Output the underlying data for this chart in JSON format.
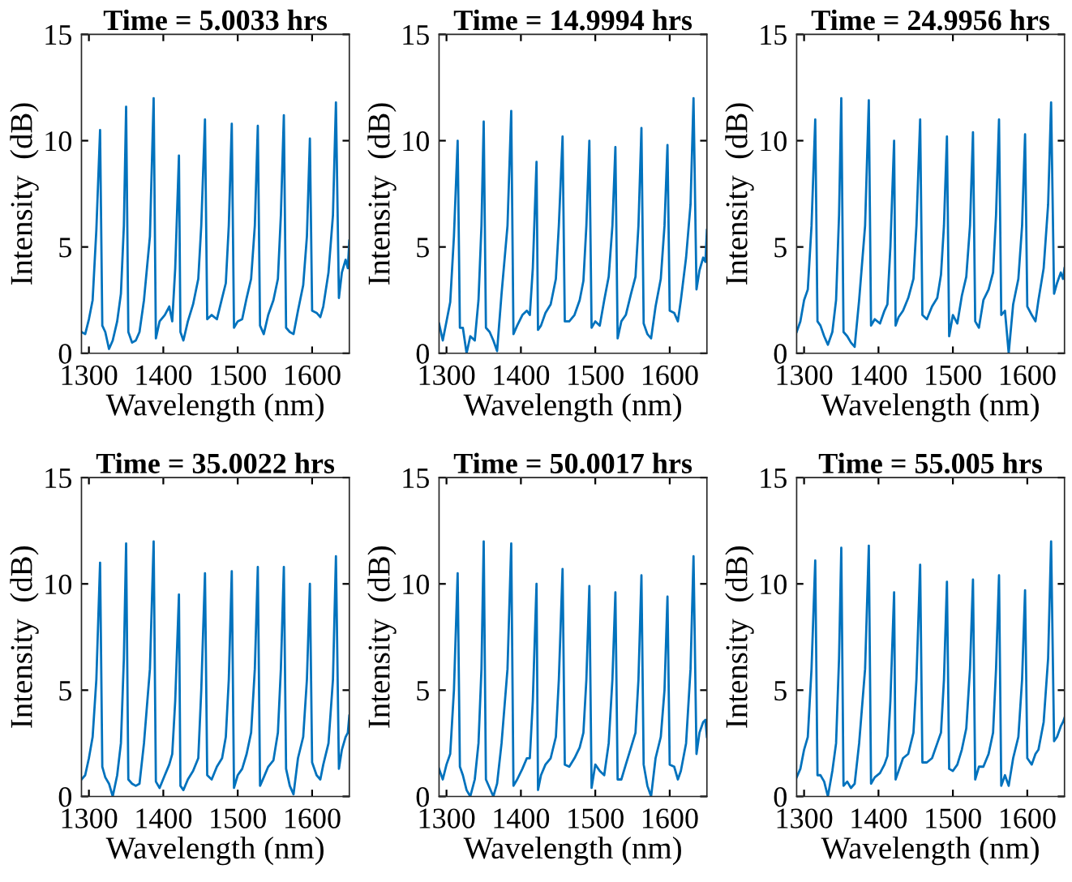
{
  "chart_data": [
    {
      "type": "line",
      "title": "Time = 5.0033 hrs",
      "xlabel": "Wavelength (nm)",
      "ylabel": "Intensity  (dB)",
      "xlim": [
        1290,
        1650
      ],
      "ylim": [
        0,
        15
      ],
      "xticks": [
        1300,
        1400,
        1500,
        1600
      ],
      "yticks": [
        0,
        5,
        10,
        15
      ],
      "grid": false,
      "x": [
        1290,
        1295,
        1300,
        1305,
        1310,
        1315,
        1318,
        1322,
        1327,
        1332,
        1338,
        1343,
        1347,
        1350,
        1353,
        1358,
        1363,
        1368,
        1374,
        1382,
        1387,
        1390,
        1395,
        1402,
        1408,
        1412,
        1416,
        1421,
        1423,
        1427,
        1433,
        1440,
        1447,
        1451,
        1456,
        1459,
        1465,
        1472,
        1479,
        1484,
        1488,
        1492,
        1495,
        1500,
        1506,
        1512,
        1518,
        1523,
        1527,
        1530,
        1535,
        1541,
        1548,
        1554,
        1558,
        1562,
        1565,
        1570,
        1575,
        1581,
        1588,
        1593,
        1597,
        1600,
        1606,
        1611,
        1615,
        1622,
        1628,
        1632,
        1636,
        1640,
        1645,
        1648,
        1650
      ],
      "series": [
        {
          "color": "#0072bd",
          "values": [
            1.0,
            0.9,
            1.6,
            2.5,
            5.8,
            10.5,
            1.3,
            1.0,
            0.2,
            0.6,
            1.5,
            2.8,
            6.0,
            11.6,
            1.0,
            0.5,
            0.6,
            1.0,
            2.5,
            5.5,
            12.0,
            0.7,
            1.5,
            1.8,
            2.2,
            1.5,
            4.0,
            9.3,
            1.0,
            0.6,
            1.5,
            2.3,
            3.5,
            6.0,
            11.0,
            1.6,
            1.8,
            1.6,
            2.6,
            3.3,
            6.0,
            10.8,
            1.2,
            1.5,
            1.6,
            2.6,
            3.5,
            6.0,
            10.7,
            1.3,
            0.9,
            1.8,
            2.5,
            3.5,
            6.5,
            11.2,
            1.2,
            1.0,
            0.9,
            2.0,
            3.2,
            5.5,
            10.1,
            2.0,
            1.9,
            1.7,
            2.2,
            3.8,
            6.5,
            11.8,
            2.6,
            3.8,
            4.4,
            4.0,
            5.3
          ]
        }
      ]
    },
    {
      "type": "line",
      "title": "Time = 14.9994 hrs",
      "xlabel": "Wavelength (nm)",
      "ylabel": "Intensity  (dB)",
      "xlim": [
        1290,
        1650
      ],
      "ylim": [
        0,
        15
      ],
      "xticks": [
        1300,
        1400,
        1500,
        1600
      ],
      "yticks": [
        0,
        5,
        10,
        15
      ],
      "grid": false,
      "x": [
        1290,
        1295,
        1300,
        1305,
        1310,
        1315,
        1318,
        1322,
        1327,
        1332,
        1338,
        1343,
        1347,
        1350,
        1353,
        1358,
        1363,
        1368,
        1374,
        1382,
        1387,
        1390,
        1395,
        1402,
        1408,
        1412,
        1416,
        1421,
        1423,
        1427,
        1433,
        1440,
        1447,
        1451,
        1456,
        1459,
        1465,
        1472,
        1479,
        1484,
        1488,
        1492,
        1495,
        1500,
        1506,
        1512,
        1518,
        1523,
        1527,
        1530,
        1535,
        1541,
        1548,
        1554,
        1558,
        1562,
        1565,
        1570,
        1575,
        1581,
        1588,
        1593,
        1597,
        1600,
        1606,
        1611,
        1615,
        1622,
        1628,
        1632,
        1636,
        1640,
        1645,
        1648,
        1650
      ],
      "series": [
        {
          "color": "#0072bd",
          "values": [
            1.4,
            0.6,
            1.5,
            2.4,
            5.5,
            10.0,
            1.2,
            1.2,
            0.0,
            0.8,
            0.6,
            2.5,
            6.0,
            10.9,
            1.2,
            1.0,
            0.6,
            0.1,
            2.8,
            6.0,
            11.4,
            0.9,
            1.3,
            1.8,
            2.0,
            1.8,
            4.0,
            9.0,
            1.1,
            1.3,
            1.9,
            2.3,
            3.5,
            6.0,
            10.2,
            1.5,
            1.5,
            1.8,
            2.5,
            3.4,
            6.0,
            10.0,
            1.2,
            1.5,
            1.3,
            2.5,
            3.6,
            6.0,
            9.7,
            0.7,
            1.5,
            1.8,
            2.8,
            3.6,
            6.0,
            10.6,
            1.4,
            0.9,
            0.7,
            2.2,
            3.5,
            6.0,
            9.8,
            2.0,
            1.9,
            1.5,
            2.5,
            4.5,
            7.0,
            12.0,
            3.0,
            3.9,
            4.5,
            4.3,
            5.8
          ]
        }
      ]
    },
    {
      "type": "line",
      "title": "Time = 24.9956 hrs",
      "xlabel": "Wavelength (nm)",
      "ylabel": "Intensity  (dB)",
      "xlim": [
        1290,
        1650
      ],
      "ylim": [
        0,
        15
      ],
      "xticks": [
        1300,
        1400,
        1500,
        1600
      ],
      "yticks": [
        0,
        5,
        10,
        15
      ],
      "grid": false,
      "x": [
        1290,
        1295,
        1300,
        1305,
        1310,
        1315,
        1318,
        1322,
        1327,
        1332,
        1338,
        1343,
        1347,
        1350,
        1353,
        1358,
        1363,
        1368,
        1374,
        1382,
        1387,
        1390,
        1395,
        1402,
        1408,
        1412,
        1416,
        1421,
        1423,
        1427,
        1433,
        1440,
        1447,
        1451,
        1456,
        1459,
        1465,
        1472,
        1479,
        1484,
        1488,
        1492,
        1495,
        1500,
        1506,
        1512,
        1518,
        1523,
        1527,
        1530,
        1535,
        1541,
        1548,
        1554,
        1558,
        1562,
        1565,
        1570,
        1575,
        1581,
        1588,
        1593,
        1597,
        1600,
        1606,
        1611,
        1615,
        1622,
        1628,
        1632,
        1636,
        1640,
        1645,
        1648,
        1650
      ],
      "series": [
        {
          "color": "#0072bd",
          "values": [
            1.0,
            1.5,
            2.5,
            3.0,
            6.0,
            11.0,
            1.5,
            1.3,
            0.8,
            0.4,
            1.0,
            2.5,
            6.5,
            12.0,
            1.0,
            0.8,
            0.5,
            0.3,
            2.5,
            6.0,
            11.9,
            1.3,
            1.6,
            1.4,
            2.0,
            2.3,
            5.0,
            10.0,
            1.3,
            1.7,
            2.0,
            2.6,
            3.5,
            6.0,
            11.0,
            1.8,
            1.6,
            2.2,
            2.6,
            3.7,
            6.0,
            10.2,
            0.8,
            1.8,
            1.4,
            2.7,
            3.6,
            6.0,
            10.4,
            1.5,
            1.2,
            2.5,
            3.0,
            3.8,
            6.5,
            11.0,
            1.8,
            2.0,
            0.0,
            2.3,
            3.5,
            6.0,
            10.3,
            2.2,
            1.8,
            1.5,
            2.5,
            4.0,
            7.0,
            11.8,
            2.8,
            3.3,
            3.8,
            3.5,
            4.0
          ]
        }
      ]
    },
    {
      "type": "line",
      "title": "Time = 35.0022 hrs",
      "xlabel": "Wavelength (nm)",
      "ylabel": "Intensity  (dB)",
      "xlim": [
        1290,
        1650
      ],
      "ylim": [
        0,
        15
      ],
      "xticks": [
        1300,
        1400,
        1500,
        1600
      ],
      "yticks": [
        0,
        5,
        10,
        15
      ],
      "grid": false,
      "x": [
        1290,
        1295,
        1300,
        1305,
        1310,
        1315,
        1318,
        1322,
        1327,
        1332,
        1338,
        1343,
        1347,
        1350,
        1353,
        1358,
        1363,
        1368,
        1374,
        1382,
        1387,
        1390,
        1395,
        1402,
        1408,
        1412,
        1416,
        1421,
        1423,
        1427,
        1433,
        1440,
        1447,
        1451,
        1456,
        1459,
        1465,
        1472,
        1479,
        1484,
        1488,
        1492,
        1495,
        1500,
        1506,
        1512,
        1518,
        1523,
        1527,
        1530,
        1535,
        1541,
        1548,
        1554,
        1558,
        1562,
        1565,
        1570,
        1575,
        1581,
        1588,
        1593,
        1597,
        1600,
        1606,
        1611,
        1615,
        1622,
        1628,
        1632,
        1636,
        1640,
        1645,
        1648,
        1650
      ],
      "series": [
        {
          "color": "#0072bd",
          "values": [
            0.8,
            1.0,
            1.8,
            2.8,
            5.5,
            11.0,
            1.4,
            0.9,
            0.6,
            0.0,
            1.0,
            2.5,
            6.5,
            11.9,
            0.8,
            0.6,
            0.5,
            0.6,
            2.5,
            6.0,
            12.0,
            0.7,
            0.4,
            1.0,
            1.5,
            2.0,
            4.5,
            9.5,
            0.5,
            0.3,
            0.8,
            1.2,
            1.8,
            5.0,
            10.5,
            1.0,
            0.8,
            1.4,
            1.8,
            2.8,
            5.5,
            10.6,
            0.4,
            1.0,
            1.3,
            2.0,
            3.0,
            6.0,
            10.8,
            0.5,
            0.9,
            1.4,
            1.7,
            3.0,
            6.0,
            10.8,
            1.3,
            0.5,
            0.1,
            1.8,
            2.8,
            5.5,
            10.0,
            1.6,
            1.0,
            0.8,
            1.5,
            2.5,
            5.5,
            11.3,
            1.3,
            2.2,
            2.8,
            3.0,
            3.8
          ]
        }
      ]
    },
    {
      "type": "line",
      "title": "Time = 50.0017 hrs",
      "xlabel": "Wavelength (nm)",
      "ylabel": "Intensity  (dB)",
      "xlim": [
        1290,
        1650
      ],
      "ylim": [
        0,
        15
      ],
      "xticks": [
        1300,
        1400,
        1500,
        1600
      ],
      "yticks": [
        0,
        5,
        10,
        15
      ],
      "grid": false,
      "x": [
        1290,
        1295,
        1300,
        1305,
        1310,
        1315,
        1318,
        1322,
        1327,
        1332,
        1338,
        1343,
        1347,
        1350,
        1353,
        1358,
        1363,
        1368,
        1374,
        1382,
        1387,
        1390,
        1395,
        1402,
        1408,
        1412,
        1416,
        1421,
        1423,
        1427,
        1433,
        1440,
        1447,
        1451,
        1456,
        1459,
        1465,
        1472,
        1479,
        1484,
        1488,
        1492,
        1495,
        1500,
        1506,
        1512,
        1518,
        1523,
        1527,
        1530,
        1535,
        1541,
        1548,
        1554,
        1558,
        1562,
        1565,
        1570,
        1575,
        1581,
        1588,
        1593,
        1597,
        1600,
        1606,
        1611,
        1615,
        1622,
        1628,
        1632,
        1636,
        1640,
        1645,
        1648,
        1650
      ],
      "series": [
        {
          "color": "#0072bd",
          "values": [
            1.3,
            0.8,
            1.5,
            2.0,
            5.0,
            10.5,
            1.4,
            1.0,
            0.3,
            0.0,
            0.8,
            2.5,
            6.0,
            12.0,
            0.8,
            0.4,
            0.0,
            0.6,
            2.5,
            6.0,
            11.9,
            0.5,
            0.8,
            1.3,
            1.8,
            1.8,
            4.5,
            10.0,
            0.3,
            1.0,
            1.5,
            1.8,
            2.8,
            5.5,
            10.7,
            1.5,
            1.4,
            1.8,
            2.3,
            3.0,
            5.5,
            9.9,
            0.4,
            1.5,
            1.2,
            1.0,
            2.5,
            5.5,
            9.6,
            0.8,
            0.8,
            1.5,
            2.3,
            3.0,
            5.5,
            10.4,
            1.5,
            0.5,
            0.0,
            1.8,
            2.8,
            5.0,
            9.4,
            1.5,
            1.4,
            0.8,
            1.2,
            2.5,
            6.0,
            11.3,
            2.0,
            3.0,
            3.5,
            3.6,
            2.8
          ]
        }
      ]
    },
    {
      "type": "line",
      "title": "Time = 55.005 hrs",
      "xlabel": "Wavelength (nm)",
      "ylabel": "Intensity  (dB)",
      "xlim": [
        1290,
        1650
      ],
      "ylim": [
        0,
        15
      ],
      "xticks": [
        1300,
        1400,
        1500,
        1600
      ],
      "yticks": [
        0,
        5,
        10,
        15
      ],
      "grid": false,
      "x": [
        1290,
        1295,
        1300,
        1305,
        1310,
        1315,
        1318,
        1322,
        1327,
        1332,
        1338,
        1343,
        1347,
        1350,
        1353,
        1358,
        1363,
        1368,
        1374,
        1382,
        1387,
        1390,
        1395,
        1402,
        1408,
        1412,
        1416,
        1421,
        1423,
        1427,
        1433,
        1440,
        1447,
        1451,
        1456,
        1459,
        1465,
        1472,
        1479,
        1484,
        1488,
        1492,
        1495,
        1500,
        1506,
        1512,
        1518,
        1523,
        1527,
        1530,
        1535,
        1541,
        1548,
        1554,
        1558,
        1562,
        1565,
        1570,
        1575,
        1581,
        1588,
        1593,
        1597,
        1600,
        1606,
        1611,
        1615,
        1622,
        1628,
        1632,
        1636,
        1640,
        1645,
        1648,
        1650
      ],
      "series": [
        {
          "color": "#0072bd",
          "values": [
            0.9,
            1.3,
            2.2,
            2.8,
            6.0,
            11.1,
            1.0,
            1.0,
            0.7,
            0.0,
            1.2,
            2.5,
            6.5,
            11.7,
            0.5,
            0.7,
            0.4,
            0.6,
            2.5,
            6.0,
            11.8,
            0.6,
            0.9,
            1.1,
            1.5,
            1.9,
            4.5,
            9.6,
            0.8,
            1.2,
            1.8,
            2.0,
            3.0,
            5.5,
            10.9,
            1.6,
            1.6,
            1.8,
            2.5,
            3.0,
            5.5,
            10.1,
            1.3,
            1.2,
            1.5,
            2.2,
            3.2,
            6.0,
            10.2,
            0.8,
            1.4,
            1.4,
            2.0,
            3.0,
            6.0,
            10.4,
            0.5,
            1.0,
            0.5,
            1.8,
            2.8,
            5.5,
            9.7,
            1.8,
            1.5,
            2.0,
            2.2,
            3.5,
            6.5,
            12.0,
            2.6,
            2.8,
            3.3,
            3.5,
            3.7
          ]
        }
      ]
    }
  ]
}
